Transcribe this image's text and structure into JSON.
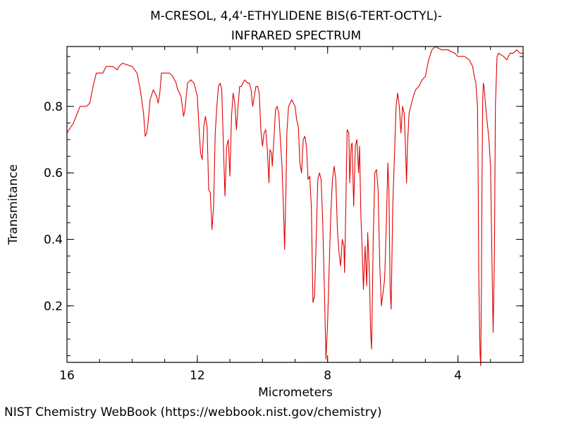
{
  "chart_data": {
    "type": "line",
    "title": "M-CRESOL, 4,4'-ETHYLIDENE BIS(6-TERT-OCTYL)-",
    "subtitle": "INFRARED SPECTRUM",
    "xlabel": "Micrometers",
    "ylabel": "Transmitance",
    "xlim": [
      16,
      2
    ],
    "ylim": [
      0.03,
      0.98
    ],
    "x_ticks": [
      16,
      12,
      8,
      4
    ],
    "x_tick_labels": [
      "16",
      "12",
      "8",
      "4"
    ],
    "y_ticks": [
      0.2,
      0.4,
      0.6,
      0.8
    ],
    "y_tick_labels": [
      "0.2",
      "0.4",
      "0.6",
      "0.8"
    ],
    "x_minor_step": 1,
    "y_minor_step": 0.05,
    "grid": false,
    "line_color": "#e00000",
    "series": [
      {
        "points": [
          [
            16.0,
            0.72
          ],
          [
            15.8,
            0.75
          ],
          [
            15.6,
            0.8
          ],
          [
            15.4,
            0.8
          ],
          [
            15.3,
            0.81
          ],
          [
            15.2,
            0.86
          ],
          [
            15.1,
            0.9
          ],
          [
            14.9,
            0.9
          ],
          [
            14.8,
            0.92
          ],
          [
            14.6,
            0.92
          ],
          [
            14.45,
            0.91
          ],
          [
            14.4,
            0.92
          ],
          [
            14.3,
            0.93
          ],
          [
            14.0,
            0.92
          ],
          [
            13.85,
            0.9
          ],
          [
            13.75,
            0.85
          ],
          [
            13.65,
            0.78
          ],
          [
            13.6,
            0.71
          ],
          [
            13.55,
            0.72
          ],
          [
            13.5,
            0.76
          ],
          [
            13.45,
            0.82
          ],
          [
            13.35,
            0.85
          ],
          [
            13.25,
            0.83
          ],
          [
            13.2,
            0.81
          ],
          [
            13.15,
            0.84
          ],
          [
            13.1,
            0.9
          ],
          [
            13.0,
            0.9
          ],
          [
            12.85,
            0.9
          ],
          [
            12.75,
            0.89
          ],
          [
            12.65,
            0.87
          ],
          [
            12.6,
            0.85
          ],
          [
            12.5,
            0.83
          ],
          [
            12.42,
            0.77
          ],
          [
            12.38,
            0.79
          ],
          [
            12.3,
            0.87
          ],
          [
            12.2,
            0.88
          ],
          [
            12.1,
            0.87
          ],
          [
            12.0,
            0.83
          ],
          [
            11.95,
            0.74
          ],
          [
            11.9,
            0.66
          ],
          [
            11.85,
            0.64
          ],
          [
            11.8,
            0.74
          ],
          [
            11.75,
            0.77
          ],
          [
            11.7,
            0.74
          ],
          [
            11.65,
            0.55
          ],
          [
            11.6,
            0.54
          ],
          [
            11.55,
            0.43
          ],
          [
            11.5,
            0.5
          ],
          [
            11.45,
            0.72
          ],
          [
            11.4,
            0.8
          ],
          [
            11.35,
            0.86
          ],
          [
            11.3,
            0.87
          ],
          [
            11.25,
            0.85
          ],
          [
            11.2,
            0.69
          ],
          [
            11.15,
            0.53
          ],
          [
            11.1,
            0.68
          ],
          [
            11.05,
            0.7
          ],
          [
            11.0,
            0.59
          ],
          [
            10.95,
            0.77
          ],
          [
            10.9,
            0.84
          ],
          [
            10.85,
            0.81
          ],
          [
            10.8,
            0.73
          ],
          [
            10.75,
            0.8
          ],
          [
            10.7,
            0.86
          ],
          [
            10.65,
            0.86
          ],
          [
            10.55,
            0.88
          ],
          [
            10.45,
            0.87
          ],
          [
            10.4,
            0.87
          ],
          [
            10.35,
            0.85
          ],
          [
            10.3,
            0.8
          ],
          [
            10.25,
            0.83
          ],
          [
            10.2,
            0.86
          ],
          [
            10.15,
            0.86
          ],
          [
            10.1,
            0.84
          ],
          [
            10.05,
            0.73
          ],
          [
            10.0,
            0.68
          ],
          [
            9.95,
            0.72
          ],
          [
            9.9,
            0.73
          ],
          [
            9.85,
            0.67
          ],
          [
            9.8,
            0.57
          ],
          [
            9.77,
            0.67
          ],
          [
            9.72,
            0.66
          ],
          [
            9.7,
            0.62
          ],
          [
            9.65,
            0.7
          ],
          [
            9.6,
            0.79
          ],
          [
            9.55,
            0.8
          ],
          [
            9.5,
            0.78
          ],
          [
            9.45,
            0.7
          ],
          [
            9.4,
            0.62
          ],
          [
            9.35,
            0.48
          ],
          [
            9.32,
            0.37
          ],
          [
            9.28,
            0.55
          ],
          [
            9.25,
            0.72
          ],
          [
            9.2,
            0.8
          ],
          [
            9.1,
            0.82
          ],
          [
            9.0,
            0.8
          ],
          [
            8.95,
            0.76
          ],
          [
            8.9,
            0.74
          ],
          [
            8.85,
            0.63
          ],
          [
            8.8,
            0.6
          ],
          [
            8.75,
            0.7
          ],
          [
            8.7,
            0.71
          ],
          [
            8.65,
            0.68
          ],
          [
            8.6,
            0.58
          ],
          [
            8.55,
            0.59
          ],
          [
            8.5,
            0.5
          ],
          [
            8.45,
            0.21
          ],
          [
            8.4,
            0.23
          ],
          [
            8.35,
            0.4
          ],
          [
            8.3,
            0.58
          ],
          [
            8.25,
            0.6
          ],
          [
            8.2,
            0.58
          ],
          [
            8.15,
            0.45
          ],
          [
            8.1,
            0.25
          ],
          [
            8.05,
            0.04
          ],
          [
            8.0,
            0.15
          ],
          [
            7.95,
            0.32
          ],
          [
            7.9,
            0.48
          ],
          [
            7.85,
            0.58
          ],
          [
            7.8,
            0.62
          ],
          [
            7.75,
            0.58
          ],
          [
            7.7,
            0.43
          ],
          [
            7.65,
            0.36
          ],
          [
            7.6,
            0.32
          ],
          [
            7.55,
            0.4
          ],
          [
            7.5,
            0.38
          ],
          [
            7.48,
            0.3
          ],
          [
            7.45,
            0.45
          ],
          [
            7.42,
            0.62
          ],
          [
            7.4,
            0.73
          ],
          [
            7.35,
            0.72
          ],
          [
            7.32,
            0.57
          ],
          [
            7.28,
            0.68
          ],
          [
            7.25,
            0.69
          ],
          [
            7.2,
            0.5
          ],
          [
            7.15,
            0.68
          ],
          [
            7.1,
            0.7
          ],
          [
            7.05,
            0.6
          ],
          [
            7.02,
            0.68
          ],
          [
            6.98,
            0.47
          ],
          [
            6.95,
            0.4
          ],
          [
            6.9,
            0.25
          ],
          [
            6.85,
            0.38
          ],
          [
            6.8,
            0.26
          ],
          [
            6.77,
            0.42
          ],
          [
            6.72,
            0.3
          ],
          [
            6.68,
            0.12
          ],
          [
            6.65,
            0.07
          ],
          [
            6.6,
            0.4
          ],
          [
            6.55,
            0.6
          ],
          [
            6.5,
            0.61
          ],
          [
            6.45,
            0.55
          ],
          [
            6.4,
            0.32
          ],
          [
            6.35,
            0.2
          ],
          [
            6.3,
            0.24
          ],
          [
            6.25,
            0.28
          ],
          [
            6.2,
            0.44
          ],
          [
            6.15,
            0.63
          ],
          [
            6.12,
            0.55
          ],
          [
            6.08,
            0.25
          ],
          [
            6.05,
            0.19
          ],
          [
            6.0,
            0.5
          ],
          [
            5.95,
            0.65
          ],
          [
            5.9,
            0.8
          ],
          [
            5.85,
            0.84
          ],
          [
            5.8,
            0.8
          ],
          [
            5.75,
            0.72
          ],
          [
            5.7,
            0.8
          ],
          [
            5.65,
            0.78
          ],
          [
            5.6,
            0.65
          ],
          [
            5.58,
            0.57
          ],
          [
            5.55,
            0.68
          ],
          [
            5.5,
            0.78
          ],
          [
            5.4,
            0.82
          ],
          [
            5.3,
            0.85
          ],
          [
            5.2,
            0.86
          ],
          [
            5.1,
            0.88
          ],
          [
            5.0,
            0.89
          ],
          [
            4.9,
            0.94
          ],
          [
            4.8,
            0.97
          ],
          [
            4.7,
            0.98
          ],
          [
            4.5,
            0.97
          ],
          [
            4.3,
            0.97
          ],
          [
            4.1,
            0.96
          ],
          [
            4.0,
            0.95
          ],
          [
            3.8,
            0.95
          ],
          [
            3.65,
            0.94
          ],
          [
            3.55,
            0.92
          ],
          [
            3.5,
            0.89
          ],
          [
            3.45,
            0.87
          ],
          [
            3.4,
            0.8
          ],
          [
            3.38,
            0.6
          ],
          [
            3.36,
            0.3
          ],
          [
            3.34,
            0.15
          ],
          [
            3.32,
            0.05
          ],
          [
            3.3,
            0.02
          ],
          [
            3.28,
            0.25
          ],
          [
            3.26,
            0.6
          ],
          [
            3.24,
            0.82
          ],
          [
            3.22,
            0.87
          ],
          [
            3.2,
            0.86
          ],
          [
            3.15,
            0.8
          ],
          [
            3.1,
            0.75
          ],
          [
            3.05,
            0.7
          ],
          [
            3.0,
            0.62
          ],
          [
            2.95,
            0.3
          ],
          [
            2.92,
            0.12
          ],
          [
            2.88,
            0.35
          ],
          [
            2.85,
            0.8
          ],
          [
            2.8,
            0.95
          ],
          [
            2.75,
            0.96
          ],
          [
            2.6,
            0.95
          ],
          [
            2.5,
            0.94
          ],
          [
            2.45,
            0.95
          ],
          [
            2.4,
            0.96
          ],
          [
            2.3,
            0.96
          ],
          [
            2.2,
            0.97
          ],
          [
            2.1,
            0.96
          ],
          [
            2.0,
            0.96
          ]
        ]
      }
    ]
  },
  "footer": {
    "credit": "NIST Chemistry WebBook (https://webbook.nist.gov/chemistry)"
  }
}
